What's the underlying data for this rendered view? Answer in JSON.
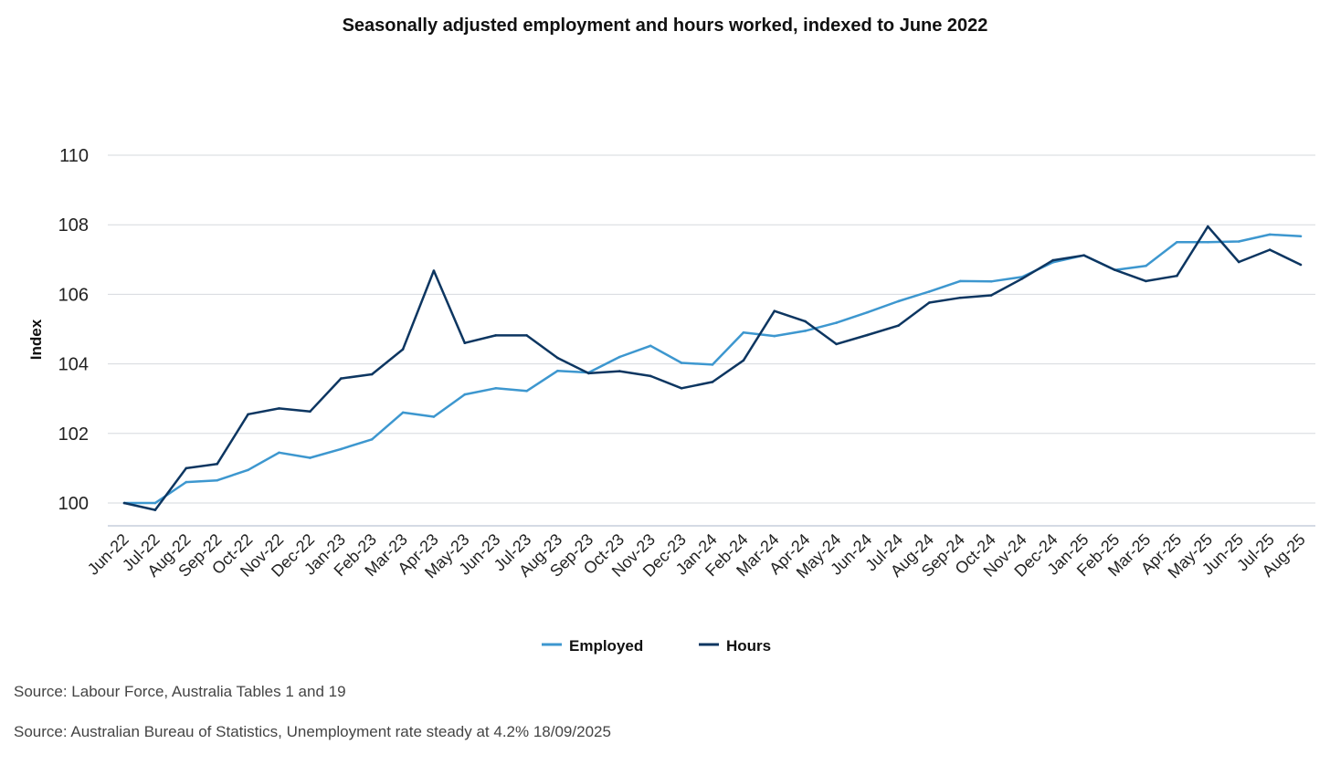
{
  "chart_data": {
    "type": "line",
    "title": "Seasonally adjusted employment and hours worked, indexed to June 2022",
    "xlabel": "",
    "ylabel": "Index",
    "ylim": [
      99.4,
      110
    ],
    "yticks": [
      100,
      102,
      104,
      106,
      108,
      110
    ],
    "ytick_labels": [
      "100",
      "102",
      "104",
      "106",
      "108",
      "110"
    ],
    "grid": true,
    "legend_position": "bottom-center",
    "categories": [
      "Jun-22",
      "Jul-22",
      "Aug-22",
      "Sep-22",
      "Oct-22",
      "Nov-22",
      "Dec-22",
      "Jan-23",
      "Feb-23",
      "Mar-23",
      "Apr-23",
      "May-23",
      "Jun-23",
      "Jul-23",
      "Aug-23",
      "Sep-23",
      "Oct-23",
      "Nov-23",
      "Dec-23",
      "Jan-24",
      "Feb-24",
      "Mar-24",
      "Apr-24",
      "May-24",
      "Jun-24",
      "Jul-24",
      "Aug-24",
      "Sep-24",
      "Oct-24",
      "Nov-24",
      "Dec-24",
      "Jan-25",
      "Feb-25",
      "Mar-25",
      "Apr-25",
      "May-25",
      "Jun-25",
      "Jul-25",
      "Aug-25"
    ],
    "series": [
      {
        "name": "Employed",
        "color": "#3d97cf",
        "values": [
          100.0,
          100.0,
          100.6,
          100.65,
          100.95,
          101.45,
          101.3,
          101.55,
          101.83,
          102.6,
          102.48,
          103.12,
          103.3,
          103.22,
          103.8,
          103.75,
          104.2,
          104.52,
          104.03,
          103.98,
          104.9,
          104.8,
          104.95,
          105.18,
          105.48,
          105.8,
          106.08,
          106.38,
          106.37,
          106.5,
          106.92,
          107.12,
          106.7,
          106.82,
          107.5,
          107.5,
          107.52,
          107.72,
          107.67
        ]
      },
      {
        "name": "Hours",
        "color": "#0d3661",
        "values": [
          100.0,
          99.8,
          101.0,
          101.12,
          102.55,
          102.72,
          102.63,
          103.58,
          103.7,
          104.42,
          106.68,
          104.6,
          104.82,
          104.82,
          104.17,
          103.73,
          103.79,
          103.65,
          103.3,
          103.48,
          104.1,
          105.52,
          105.22,
          104.57,
          104.83,
          105.1,
          105.76,
          105.9,
          105.97,
          106.45,
          106.98,
          107.12,
          106.7,
          106.38,
          106.53,
          107.95,
          106.93,
          107.28,
          106.85
        ]
      }
    ]
  },
  "footer": {
    "source_1": "Source: Labour Force, Australia Tables 1 and 19",
    "source_2": "Source: Australian Bureau of Statistics, Unemployment rate steady at 4.2% 18/09/2025"
  }
}
